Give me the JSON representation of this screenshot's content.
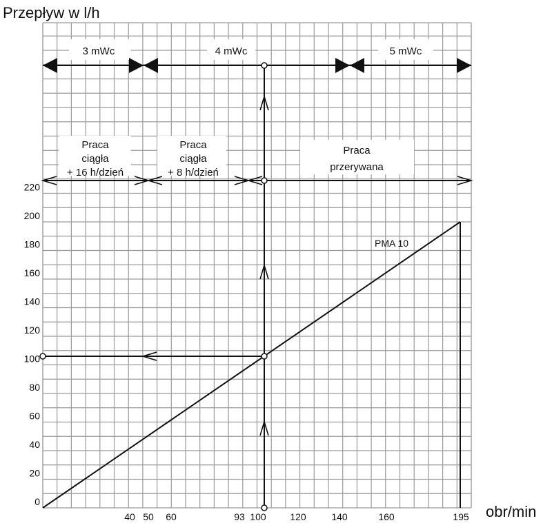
{
  "chart_data": {
    "type": "line",
    "ylabel": "Przepływ w l/h",
    "xlabel": "obr/min",
    "x_ticks": [
      "40",
      "50",
      "60",
      "93",
      "100",
      "120",
      "140",
      "160",
      "195"
    ],
    "y_ticks": [
      "0",
      "20",
      "40",
      "60",
      "80",
      "100",
      "120",
      "140",
      "160",
      "180",
      "200",
      "220"
    ],
    "xlim": [
      0,
      195
    ],
    "ylim": [
      0,
      220
    ],
    "grid": true,
    "series": [
      {
        "name": "PMA 10",
        "points": [
          [
            0,
            0
          ],
          [
            195,
            200
          ]
        ]
      }
    ],
    "operating_point": {
      "x": 102,
      "y": 106
    },
    "pressure_bands": [
      {
        "label": "3 mWc"
      },
      {
        "label": "4 mWc"
      },
      {
        "label": "5 mWc"
      }
    ],
    "duty_bands": [
      {
        "lines": [
          "Praca",
          "ciągła",
          "+ 16 h/dzień"
        ]
      },
      {
        "lines": [
          "Praca",
          "ciągła",
          "+ 8 h/dzień"
        ]
      },
      {
        "lines": [
          "Praca",
          "przerywana"
        ]
      }
    ],
    "colors": {
      "line": "#111111",
      "grid": "#9a9a9a",
      "background": "#ffffff"
    }
  }
}
